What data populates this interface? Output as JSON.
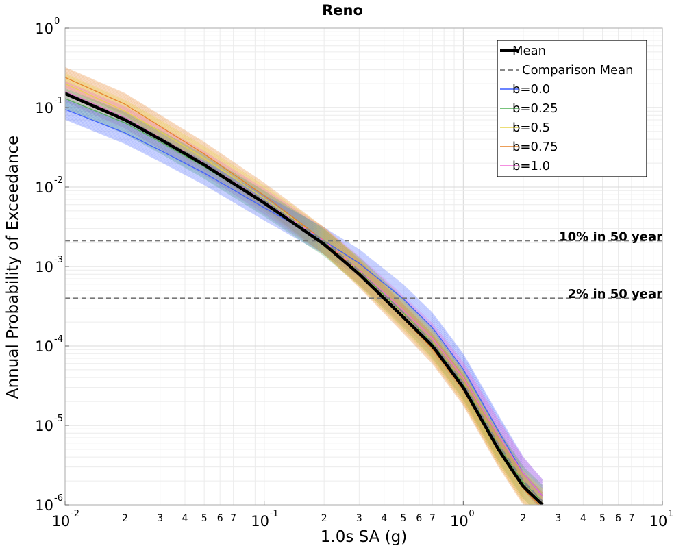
{
  "chart_data": {
    "type": "line",
    "title": "Reno",
    "xlabel": "1.0s SA (g)",
    "ylabel": "Annual Probability of Exceedance",
    "x_scale": "log",
    "y_scale": "log",
    "xlim": [
      0.01,
      10
    ],
    "ylim": [
      1e-06,
      1
    ],
    "grid": true,
    "legend_position": "top-right",
    "x_major_ticks": [
      {
        "base": "10",
        "exp": "-2"
      },
      {
        "base": "10",
        "exp": "-1"
      },
      {
        "base": "10",
        "exp": "0"
      },
      {
        "base": "10",
        "exp": "1"
      }
    ],
    "x_minor_tick_labels": [
      "2",
      "3",
      "4",
      "5",
      "6",
      "7"
    ],
    "y_major_ticks": [
      {
        "base": "10",
        "exp": "0"
      },
      {
        "base": "10",
        "exp": "-1"
      },
      {
        "base": "10",
        "exp": "-2"
      },
      {
        "base": "10",
        "exp": "-3"
      },
      {
        "base": "10",
        "exp": "-4"
      },
      {
        "base": "10",
        "exp": "-5"
      },
      {
        "base": "10",
        "exp": "-6"
      }
    ],
    "reference_lines": [
      {
        "label": "10% in 50 year",
        "y": 0.0021,
        "color": "#777777"
      },
      {
        "label": "2% in 50 year",
        "y": 0.0004,
        "color": "#777777"
      }
    ],
    "legend": [
      {
        "label": "Mean",
        "style": "solid-thick",
        "color": "#000000"
      },
      {
        "label": "Comparison Mean",
        "style": "dashed",
        "color": "#888888"
      },
      {
        "label": "b=0.0",
        "style": "solid",
        "color": "#3a5bff"
      },
      {
        "label": "b=0.25",
        "style": "solid",
        "color": "#4caf50"
      },
      {
        "label": "b=0.5",
        "style": "solid",
        "color": "#e6d44a"
      },
      {
        "label": "b=0.75",
        "style": "solid",
        "color": "#e67e22"
      },
      {
        "label": "b=1.0",
        "style": "solid",
        "color": "#f06ad6"
      }
    ],
    "series": [
      {
        "name": "Mean",
        "x": [
          0.01,
          0.02,
          0.03,
          0.05,
          0.1,
          0.2,
          0.3,
          0.5,
          0.7,
          1.0,
          1.5,
          2.0,
          2.5
        ],
        "y": [
          0.15,
          0.07,
          0.04,
          0.019,
          0.0063,
          0.0019,
          0.0008,
          0.00023,
          0.0001,
          3e-05,
          5e-06,
          1.7e-06,
          1e-06
        ]
      },
      {
        "name": "Comparison Mean",
        "x": [
          0.01,
          0.02,
          0.03,
          0.05,
          0.1,
          0.2,
          0.3,
          0.5,
          0.7,
          1.0,
          1.5,
          2.0,
          2.5
        ],
        "y": [
          0.155,
          0.073,
          0.042,
          0.02,
          0.0067,
          0.0021,
          0.00088,
          0.00026,
          0.00011,
          3.4e-05,
          5.8e-06,
          2e-06,
          1.1e-06
        ]
      },
      {
        "name": "b=0.0",
        "x": [
          0.01,
          0.02,
          0.03,
          0.05,
          0.1,
          0.2,
          0.3,
          0.5,
          0.7,
          1.0,
          1.5,
          2.0,
          2.5
        ],
        "y": [
          0.095,
          0.048,
          0.029,
          0.015,
          0.0055,
          0.0021,
          0.0011,
          0.00039,
          0.00017,
          5.1e-05,
          8.5e-06,
          2.5e-06,
          1.3e-06
        ]
      },
      {
        "name": "b=0.25",
        "x": [
          0.01,
          0.02,
          0.03,
          0.05,
          0.1,
          0.2,
          0.3,
          0.5,
          0.7,
          1.0,
          1.5,
          2.0,
          2.5
        ],
        "y": [
          0.13,
          0.064,
          0.037,
          0.018,
          0.0062,
          0.002,
          0.00087,
          0.00026,
          0.000108,
          3.3e-05,
          5.6e-06,
          1.9e-06,
          1.1e-06
        ]
      },
      {
        "name": "b=0.5",
        "x": [
          0.01,
          0.02,
          0.03,
          0.05,
          0.1,
          0.2,
          0.3,
          0.5,
          0.7,
          1.0,
          1.5,
          2.0,
          2.5
        ],
        "y": [
          0.2,
          0.09,
          0.05,
          0.023,
          0.0072,
          0.0021,
          0.00085,
          0.00024,
          0.0001,
          3e-05,
          5.1e-06,
          1.7e-06,
          1e-06
        ]
      },
      {
        "name": "b=0.75",
        "x": [
          0.01,
          0.02,
          0.03,
          0.05,
          0.1,
          0.2,
          0.3,
          0.5,
          0.7,
          1.0,
          1.5,
          2.0,
          2.5
        ],
        "y": [
          0.24,
          0.11,
          0.058,
          0.026,
          0.0078,
          0.0021,
          0.00082,
          0.00022,
          9.2e-05,
          2.8e-05,
          4.8e-06,
          1.6e-06,
          9e-07
        ]
      },
      {
        "name": "b=1.0",
        "x": [
          0.01,
          0.02,
          0.03,
          0.05,
          0.1,
          0.2,
          0.3,
          0.5,
          0.7,
          1.0,
          1.5,
          2.0,
          2.5
        ],
        "y": [
          0.16,
          0.075,
          0.042,
          0.02,
          0.0066,
          0.0021,
          0.0009,
          0.00028,
          0.000125,
          4e-05,
          7.5e-06,
          2.5e-06,
          1.3e-06
        ]
      }
    ]
  }
}
